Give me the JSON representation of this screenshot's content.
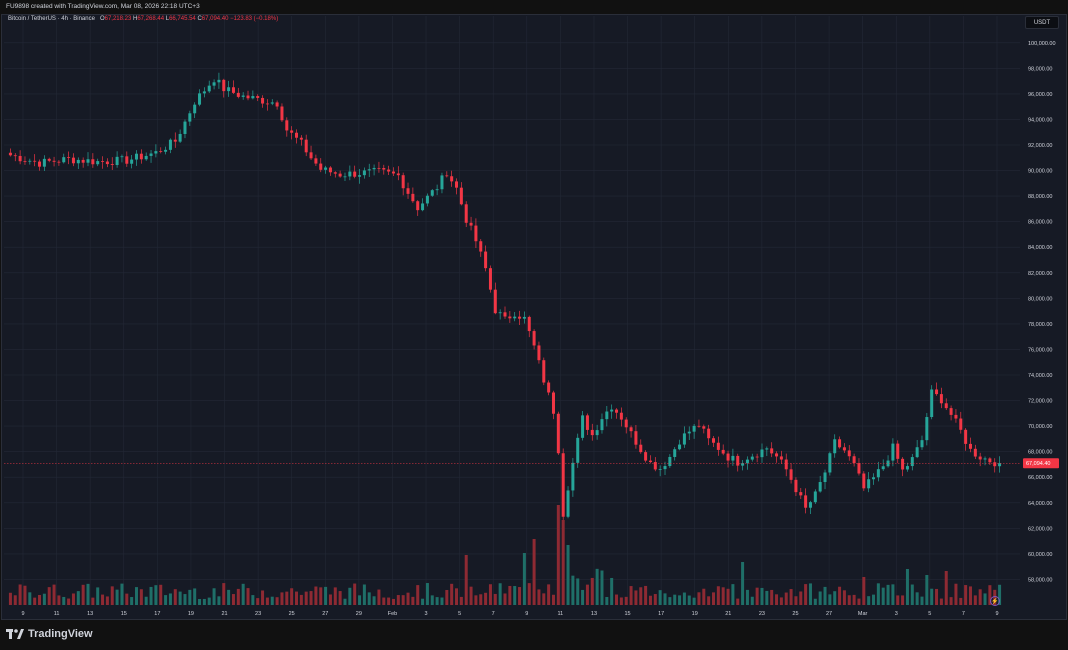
{
  "header": {
    "attribution": "FU9898 created with TradingView.com, Mar 08, 2026 22:18 UTC+3"
  },
  "legend": {
    "symbol": "Bitcoin / TetherUS · 4h · Binance",
    "o_label": "O",
    "o": "67,218.23",
    "h_label": "H",
    "h": "67,268.44",
    "l_label": "L",
    "l": "66,745.54",
    "c_label": "C",
    "c": "67,094.40",
    "change": "−123.83 (−0.18%)"
  },
  "currency_button": "USDT",
  "brand": "TradingView",
  "colors": {
    "up": "#26a69a",
    "down": "#f23645",
    "up_volume": "#1f6f68",
    "down_volume": "#8e2a33",
    "grid": "#232836",
    "text": "#d1d4dc",
    "background": "#161a25"
  },
  "chart_data": {
    "type": "candlestick",
    "title": "Bitcoin / TetherUS · 4h · Binance",
    "interval": "4h",
    "ylim": [
      56000,
      101000
    ],
    "y_ticks": [
      "100,000.00",
      "98,000.00",
      "96,000.00",
      "94,000.00",
      "92,000.00",
      "90,000.00",
      "88,000.00",
      "86,000.00",
      "84,000.00",
      "82,000.00",
      "80,000.00",
      "78,000.00",
      "76,000.00",
      "74,000.00",
      "72,000.00",
      "70,000.00",
      "68,000.00",
      "66,000.00",
      "64,000.00",
      "62,000.00",
      "60,000.00",
      "58,000.00"
    ],
    "y_tick_values": [
      100000,
      98000,
      96000,
      94000,
      92000,
      90000,
      88000,
      86000,
      84000,
      82000,
      80000,
      78000,
      76000,
      74000,
      72000,
      70000,
      68000,
      66000,
      64000,
      62000,
      60000,
      58000
    ],
    "x_ticks": [
      "9",
      "11",
      "13",
      "15",
      "17",
      "19",
      "21",
      "23",
      "25",
      "27",
      "29",
      "Feb",
      "3",
      "5",
      "7",
      "9",
      "11",
      "13",
      "15",
      "17",
      "19",
      "21",
      "23",
      "25",
      "27",
      "Mar",
      "3",
      "5",
      "7",
      "9"
    ],
    "last_price": "67,094.40",
    "last_price_value": 67094.4,
    "grid": true,
    "close_path": [
      [
        0,
        91200
      ],
      [
        6,
        90600
      ],
      [
        12,
        90900
      ],
      [
        18,
        90700
      ],
      [
        24,
        90800
      ],
      [
        30,
        91400
      ],
      [
        34,
        92300
      ],
      [
        36,
        93800
      ],
      [
        38,
        95400
      ],
      [
        42,
        97200
      ],
      [
        44,
        96400
      ],
      [
        48,
        95800
      ],
      [
        52,
        95500
      ],
      [
        55,
        95300
      ],
      [
        57,
        93200
      ],
      [
        60,
        92100
      ],
      [
        62,
        91000
      ],
      [
        64,
        90100
      ],
      [
        68,
        89700
      ],
      [
        72,
        89800
      ],
      [
        76,
        89900
      ],
      [
        80,
        89600
      ],
      [
        82,
        88300
      ],
      [
        84,
        87100
      ],
      [
        86,
        87900
      ],
      [
        88,
        88700
      ],
      [
        90,
        89900
      ],
      [
        92,
        88600
      ],
      [
        94,
        86200
      ],
      [
        96,
        84500
      ],
      [
        98,
        82300
      ],
      [
        100,
        79100
      ],
      [
        102,
        78300
      ],
      [
        104,
        78900
      ],
      [
        106,
        78400
      ],
      [
        108,
        76200
      ],
      [
        110,
        73600
      ],
      [
        112,
        71200
      ],
      [
        113,
        68200
      ],
      [
        114,
        63200
      ],
      [
        115,
        65300
      ],
      [
        116,
        67100
      ],
      [
        118,
        70600
      ],
      [
        120,
        69300
      ],
      [
        122,
        70700
      ],
      [
        124,
        71600
      ],
      [
        126,
        70700
      ],
      [
        128,
        69400
      ],
      [
        130,
        68200
      ],
      [
        132,
        67100
      ],
      [
        134,
        66700
      ],
      [
        136,
        67600
      ],
      [
        138,
        68900
      ],
      [
        140,
        69600
      ],
      [
        142,
        70100
      ],
      [
        144,
        68900
      ],
      [
        146,
        68300
      ],
      [
        148,
        67600
      ],
      [
        150,
        67200
      ],
      [
        152,
        67600
      ],
      [
        154,
        67900
      ],
      [
        156,
        68300
      ],
      [
        158,
        67600
      ],
      [
        160,
        66600
      ],
      [
        162,
        65100
      ],
      [
        164,
        63500
      ],
      [
        166,
        64600
      ],
      [
        168,
        66400
      ],
      [
        170,
        68700
      ],
      [
        172,
        68100
      ],
      [
        174,
        66900
      ],
      [
        176,
        65100
      ],
      [
        178,
        65900
      ],
      [
        180,
        66900
      ],
      [
        182,
        68300
      ],
      [
        184,
        66500
      ],
      [
        186,
        67400
      ],
      [
        188,
        68900
      ],
      [
        190,
        72600
      ],
      [
        192,
        72100
      ],
      [
        194,
        70900
      ],
      [
        196,
        69600
      ],
      [
        198,
        68100
      ],
      [
        200,
        67600
      ],
      [
        202,
        67300
      ],
      [
        204,
        67094
      ]
    ],
    "volume_spikes": [
      [
        94,
        50
      ],
      [
        106,
        52
      ],
      [
        108,
        66
      ],
      [
        113,
        100
      ],
      [
        114,
        85
      ],
      [
        115,
        60
      ],
      [
        151,
        43
      ],
      [
        176,
        28
      ],
      [
        185,
        36
      ],
      [
        189,
        30
      ],
      [
        193,
        34
      ]
    ]
  }
}
